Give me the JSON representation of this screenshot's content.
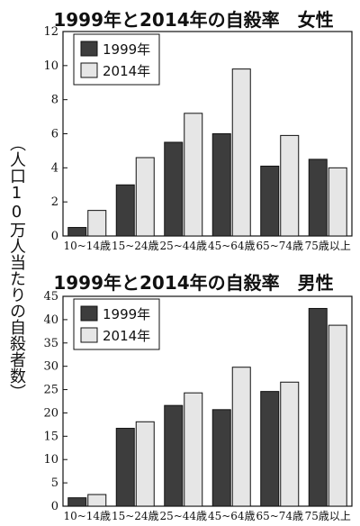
{
  "y_axis_label": "（人口10万人当たりの自殺者数）",
  "chart_data": [
    {
      "type": "bar",
      "title": "1999年と2014年の自殺率　女性",
      "categories": [
        "10~14歳",
        "15~24歳",
        "25~44歳",
        "45~64歳",
        "65~74歳",
        "75歳以上"
      ],
      "series": [
        {
          "name": "1999年",
          "values": [
            0.5,
            3.0,
            5.5,
            6.0,
            4.1,
            4.5
          ],
          "color": "#3d3d3d"
        },
        {
          "name": "2014年",
          "values": [
            1.5,
            4.6,
            7.2,
            9.8,
            5.9,
            4.0
          ],
          "color": "#e6e6e6"
        }
      ],
      "ylim": [
        0,
        12
      ],
      "yticks": [
        0,
        2,
        4,
        6,
        8,
        10,
        12
      ],
      "legend": "top-left",
      "grid": false
    },
    {
      "type": "bar",
      "title": "1999年と2014年の自殺率　男性",
      "categories": [
        "10~14歳",
        "15~24歳",
        "25~44歳",
        "45~64歳",
        "65~74歳",
        "75歳以上"
      ],
      "series": [
        {
          "name": "1999年",
          "values": [
            1.8,
            16.7,
            21.6,
            20.7,
            24.6,
            42.4
          ],
          "color": "#3d3d3d"
        },
        {
          "name": "2014年",
          "values": [
            2.5,
            18.1,
            24.3,
            29.8,
            26.6,
            38.8
          ],
          "color": "#e6e6e6"
        }
      ],
      "ylim": [
        0,
        45
      ],
      "yticks": [
        0,
        5,
        10,
        15,
        20,
        25,
        30,
        35,
        40,
        45
      ],
      "legend": "top-left",
      "grid": false
    }
  ]
}
